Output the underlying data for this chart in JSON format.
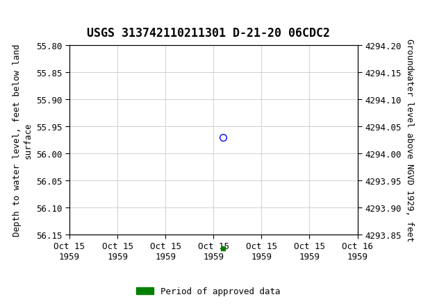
{
  "title": "USGS 313742110211301 D-21-20 06CDC2",
  "xlabel_dates": [
    "Oct 15\n1959",
    "Oct 15\n1959",
    "Oct 15\n1959",
    "Oct 15\n1959",
    "Oct 15\n1959",
    "Oct 15\n1959",
    "Oct 16\n1959"
  ],
  "xlim": [
    0,
    6
  ],
  "xtick_positions": [
    0,
    1,
    2,
    3,
    4,
    5,
    6
  ],
  "ylim_left_top": 55.8,
  "ylim_left_bottom": 56.15,
  "ylim_right_top": 4294.2,
  "ylim_right_bottom": 4293.85,
  "yticks_left": [
    55.8,
    55.85,
    55.9,
    55.95,
    56.0,
    56.05,
    56.1,
    56.15
  ],
  "yticks_right": [
    4294.2,
    4294.15,
    4294.1,
    4294.05,
    4294.0,
    4293.95,
    4293.9,
    4293.85
  ],
  "ylabel_left": "Depth to water level, feet below land\nsurface",
  "ylabel_right": "Groundwater level above NGVD 1929, feet",
  "data_point_x": 3.2,
  "data_point_y": 55.97,
  "marker_color": "blue",
  "marker_style": "o",
  "bar_x": 3.2,
  "bar_y": 56.175,
  "bar_color": "#008000",
  "legend_label": "Period of approved data",
  "header_color": "#1a6b3a",
  "grid_color": "#d0d0d0",
  "bg_color": "white",
  "title_fontsize": 12,
  "tick_fontsize": 9,
  "label_fontsize": 9,
  "legend_fontsize": 9
}
